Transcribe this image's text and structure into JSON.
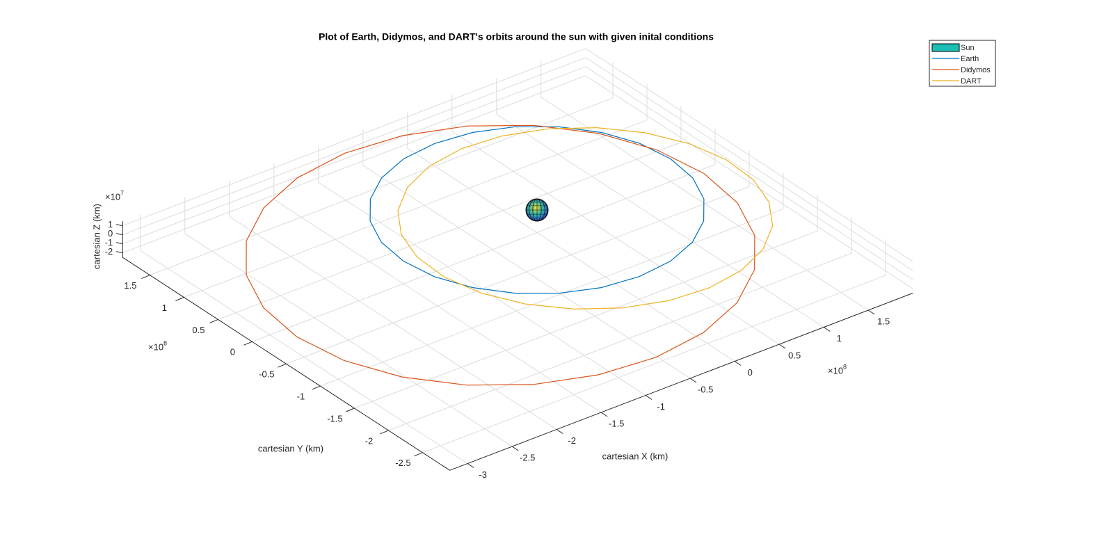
{
  "chart_data": {
    "type": "line3d",
    "title": "Plot of Earth, Didymos, and DART's orbits around the sun with given inital conditions",
    "xlabel": "cartesian X (km)",
    "ylabel": "cartesian Y (km)",
    "zlabel": "cartesian Z (km)",
    "x_multiplier": {
      "base": "×10",
      "exponent": "8"
    },
    "y_multiplier": {
      "base": "×10",
      "exponent": "8"
    },
    "z_multiplier": {
      "base": "×10",
      "exponent": "7"
    },
    "xlim": [
      -3.2,
      2
    ],
    "ylim": [
      -2.9,
      1.9
    ],
    "zlim": [
      -2.5,
      1.5
    ],
    "xticks": [
      -3,
      -2.5,
      -2,
      -1.5,
      -1,
      -0.5,
      0,
      0.5,
      1,
      1.5
    ],
    "yticks": [
      -2.5,
      -2,
      -1.5,
      -1,
      -0.5,
      0,
      0.5,
      1,
      1.5
    ],
    "zticks": [
      -2,
      -1,
      0,
      1
    ],
    "grid": true,
    "legend": "top-right",
    "sun": {
      "name": "Sun",
      "color": "#1cbfb4",
      "x": 0,
      "y": 0,
      "z": 0
    },
    "series": [
      {
        "name": "Earth",
        "color": "#0072bd",
        "x": [
          1.5,
          1.45,
          1.3,
          1.06,
          0.75,
          0.39,
          0,
          -0.39,
          -0.75,
          -1.06,
          -1.3,
          -1.45,
          -1.5,
          -1.45,
          -1.3,
          -1.06,
          -0.75,
          -0.39,
          0,
          0.39,
          0.75,
          1.06,
          1.3,
          1.45
        ],
        "y": [
          0,
          0.39,
          0.75,
          1.06,
          1.3,
          1.45,
          1.5,
          1.45,
          1.3,
          1.06,
          0.75,
          0.39,
          0,
          -0.39,
          -0.75,
          -1.06,
          -1.3,
          -1.45,
          -1.5,
          -1.45,
          -1.3,
          -1.06,
          -0.75,
          -0.39
        ],
        "z": [
          0,
          0,
          0,
          0,
          0,
          0,
          0,
          0,
          0,
          0,
          0,
          0,
          0,
          0,
          0,
          0,
          0,
          0,
          0,
          0,
          0,
          0,
          0,
          0
        ]
      },
      {
        "name": "Didymos",
        "color": "#d95319",
        "x": [
          -2.769,
          -2.4,
          -1.919,
          -1.358,
          -0.757,
          -0.154,
          0.408,
          0.892,
          1.263,
          1.496,
          1.577,
          1.5,
          1.269,
          0.9,
          0.419,
          -0.142,
          -0.743,
          -1.346,
          -1.908,
          -2.392,
          -2.763,
          -2.996,
          -3.077,
          -3.0
        ],
        "y": [
          -1.637,
          -2.103,
          -2.457,
          -2.672,
          -2.737,
          -2.644,
          -2.402,
          -2.026,
          -1.543,
          -0.984,
          -0.389,
          0.203,
          0.751,
          1.217,
          1.571,
          1.786,
          1.851,
          1.758,
          1.516,
          1.14,
          0.657,
          0.098,
          -0.497,
          -1.089
        ],
        "z": [
          0,
          0,
          0,
          0,
          0,
          0,
          0,
          0,
          0,
          0,
          0,
          0,
          0,
          0,
          0,
          0,
          0,
          0,
          0,
          0,
          0,
          0,
          0,
          0
        ]
      },
      {
        "name": "DART",
        "color": "#edb120",
        "x": [
          1.172,
          1.492,
          1.725,
          1.859,
          1.884,
          1.797,
          1.604,
          1.319,
          0.962,
          0.555,
          0.129,
          -0.29,
          -0.672,
          -0.992,
          -1.225,
          -1.359,
          -1.384,
          -1.297,
          -1.104,
          -0.819,
          -0.462,
          -0.055,
          0.371,
          0.79
        ],
        "y": [
          -1.784,
          -1.506,
          -1.151,
          -0.744,
          -0.312,
          0.115,
          0.509,
          0.843,
          1.092,
          1.242,
          1.281,
          1.206,
          1.024,
          0.746,
          0.391,
          -0.016,
          -0.448,
          -0.875,
          -1.269,
          -1.603,
          -1.852,
          -2.002,
          -2.041,
          -1.966
        ],
        "z": [
          0,
          0,
          0,
          0,
          0,
          0,
          0,
          0,
          0,
          0,
          0,
          0,
          0,
          0,
          0,
          0,
          0,
          0,
          0,
          0,
          0,
          0,
          0,
          0
        ]
      }
    ]
  }
}
